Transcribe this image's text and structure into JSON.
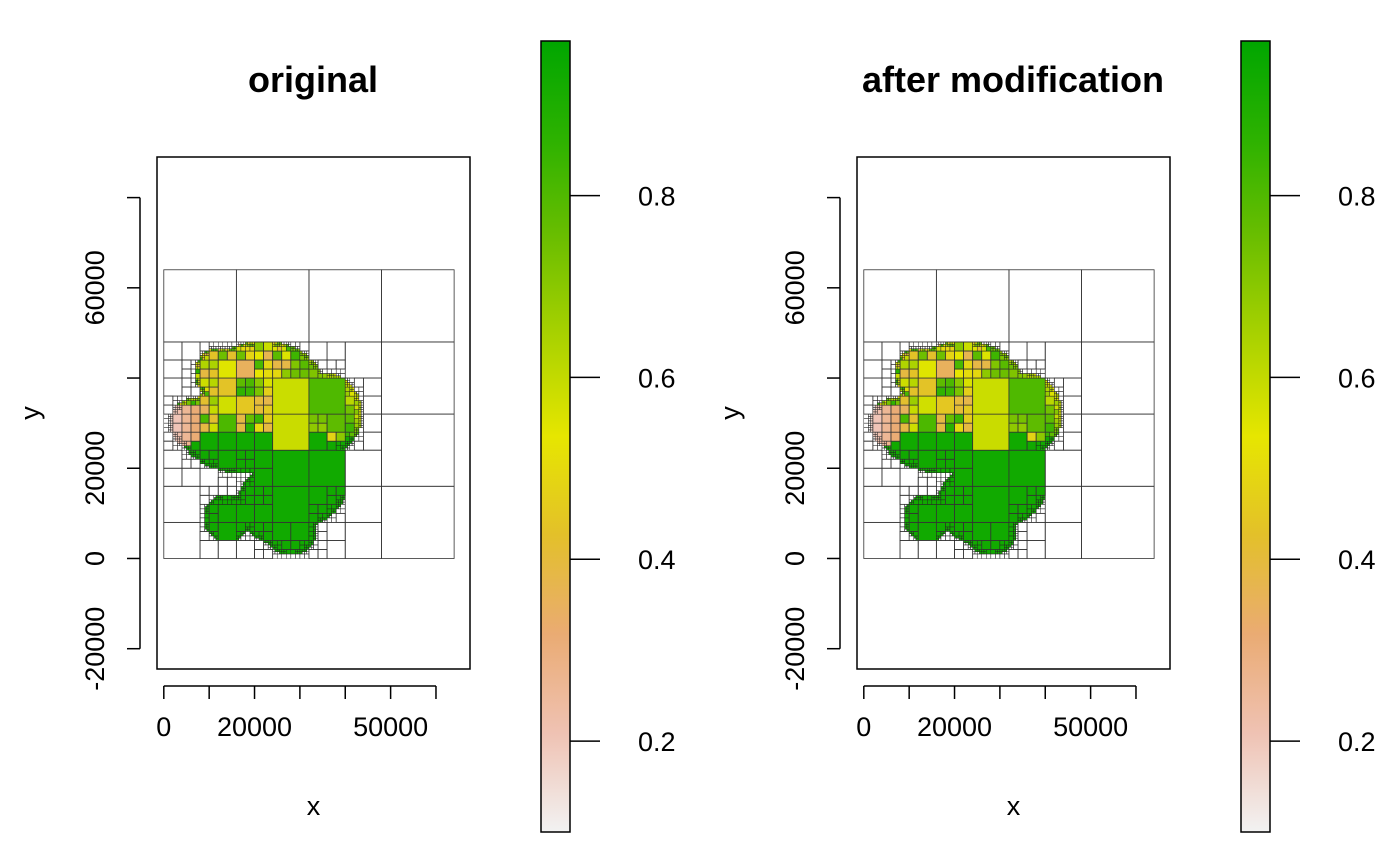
{
  "chart_data": [
    {
      "type": "heatmap",
      "title": "original",
      "xlabel": "x",
      "ylabel": "y",
      "xlim": [
        -1500,
        67500
      ],
      "ylim": [
        -24500,
        89000
      ],
      "x_ticks": [
        0,
        10000,
        20000,
        30000,
        40000,
        50000,
        60000
      ],
      "x_tick_labels": [
        "0",
        "",
        "20000",
        "",
        "",
        "50000",
        ""
      ],
      "y_ticks": [
        -20000,
        0,
        20000,
        40000,
        60000,
        80000
      ],
      "y_tick_labels": [
        "-20000",
        "0",
        "20000",
        "",
        "60000",
        ""
      ],
      "quadtree_extent": {
        "x": [
          0,
          64000
        ],
        "y": [
          0,
          64000
        ]
      },
      "colorbar": {
        "range": [
          0.1,
          0.97
        ],
        "ticks": [
          0.2,
          0.4,
          0.6,
          0.8
        ],
        "tick_labels": [
          "0.2",
          "0.4",
          "0.6",
          "0.8"
        ],
        "colors": [
          "#f2f2f2",
          "#efc2b3",
          "#eaab73",
          "#e3c02a",
          "#e6e600",
          "#aad200",
          "#6bbe00",
          "#2db200",
          "#00a600"
        ]
      }
    },
    {
      "type": "heatmap",
      "title": "after modification",
      "xlabel": "x",
      "ylabel": "y",
      "xlim": [
        -1500,
        67500
      ],
      "ylim": [
        -24500,
        89000
      ],
      "x_ticks": [
        0,
        10000,
        20000,
        30000,
        40000,
        50000,
        60000
      ],
      "x_tick_labels": [
        "0",
        "",
        "20000",
        "",
        "",
        "50000",
        ""
      ],
      "y_ticks": [
        -20000,
        0,
        20000,
        40000,
        60000,
        80000
      ],
      "y_tick_labels": [
        "-20000",
        "0",
        "20000",
        "",
        "60000",
        ""
      ],
      "quadtree_extent": {
        "x": [
          0,
          64000
        ],
        "y": [
          0,
          64000
        ]
      },
      "colorbar": {
        "range": [
          0.1,
          0.97
        ],
        "ticks": [
          0.2,
          0.4,
          0.6,
          0.8
        ],
        "tick_labels": [
          "0.2",
          "0.4",
          "0.6",
          "0.8"
        ],
        "colors": [
          "#f2f2f2",
          "#efc2b3",
          "#eaab73",
          "#e3c02a",
          "#e6e600",
          "#aad200",
          "#6bbe00",
          "#2db200",
          "#00a600"
        ]
      }
    }
  ]
}
